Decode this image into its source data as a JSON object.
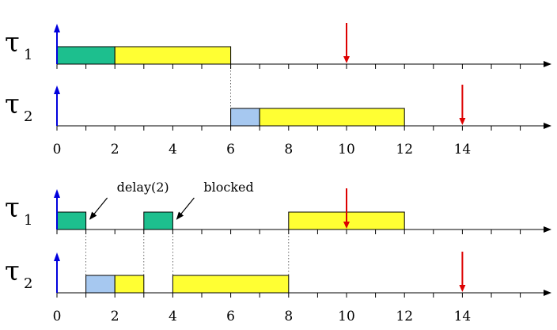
{
  "diagram": {
    "colors": {
      "green": "#1dbf8e",
      "yellow": "#ffff33",
      "blue": "#a6c8f0",
      "arrival": "#0000dd",
      "deadline": "#dd0000",
      "axis": "#000000"
    },
    "panels": [
      {
        "rows": [
          {
            "task_symbol": "τ",
            "task_subscript": "1",
            "arrival_time": 0,
            "deadline_time": 10,
            "segments": [
              {
                "start": 0,
                "end": 2,
                "color": "green"
              },
              {
                "start": 2,
                "end": 6,
                "color": "yellow"
              }
            ]
          },
          {
            "task_symbol": "τ",
            "task_subscript": "2",
            "arrival_time": 0,
            "deadline_time": 14,
            "segments": [
              {
                "start": 6,
                "end": 7,
                "color": "blue"
              },
              {
                "start": 7,
                "end": 12,
                "color": "yellow"
              }
            ]
          }
        ],
        "tick_labels": [
          "0",
          "2",
          "4",
          "6",
          "8",
          "10",
          "12",
          "14"
        ],
        "dotted_guides": [
          6
        ]
      },
      {
        "rows": [
          {
            "task_symbol": "τ",
            "task_subscript": "1",
            "arrival_time": 0,
            "deadline_time": 10,
            "segments": [
              {
                "start": 0,
                "end": 1,
                "color": "green"
              },
              {
                "start": 3,
                "end": 4,
                "color": "green"
              },
              {
                "start": 8,
                "end": 12,
                "color": "yellow"
              }
            ]
          },
          {
            "task_symbol": "τ",
            "task_subscript": "2",
            "arrival_time": 0,
            "deadline_time": 14,
            "segments": [
              {
                "start": 1,
                "end": 2,
                "color": "blue"
              },
              {
                "start": 2,
                "end": 3,
                "color": "yellow"
              },
              {
                "start": 4,
                "end": 8,
                "color": "yellow"
              }
            ]
          }
        ],
        "tick_labels": [
          "0",
          "2",
          "4",
          "6",
          "8",
          "10",
          "12",
          "14"
        ],
        "dotted_guides": [
          1,
          3,
          4,
          8
        ],
        "annotations": [
          {
            "text": "delay(2)",
            "points_to_time": 1
          },
          {
            "text": "blocked",
            "points_to_time": 4
          }
        ]
      }
    ]
  }
}
